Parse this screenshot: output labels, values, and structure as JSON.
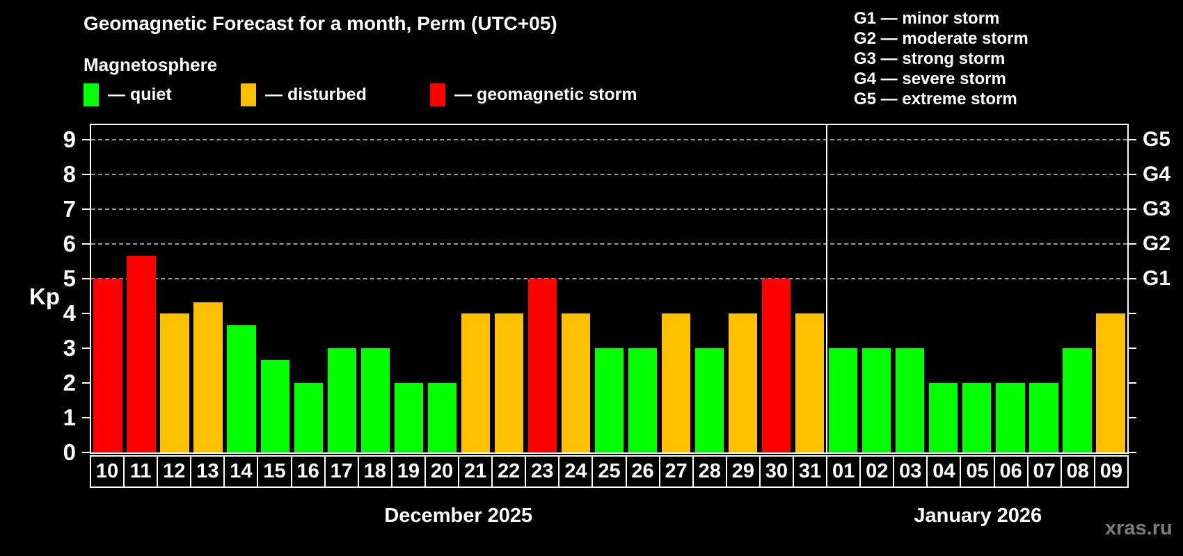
{
  "title": "Geomagnetic Forecast for a month, Perm (UTC+05)",
  "subtitle": "Magnetosphere",
  "legend": {
    "quiet": {
      "label": "— quiet",
      "color": "#00ff00"
    },
    "disturbed": {
      "label": "— disturbed",
      "color": "#ffc000"
    },
    "storm": {
      "label": "— geomagnetic storm",
      "color": "#ff0000"
    }
  },
  "g_legend": {
    "g1": "G1 — minor storm",
    "g2": "G2 — moderate storm",
    "g3": "G3 — strong storm",
    "g4": "G4 — severe storm",
    "g5": "G5 — extreme storm"
  },
  "watermark": "xras.ru",
  "chart_data": {
    "type": "bar",
    "title": "Geomagnetic Forecast for a month, Perm (UTC+05)",
    "ylabel": "Kp",
    "ylim": [
      0,
      9.42
    ],
    "yticks": [
      0,
      1,
      2,
      3,
      4,
      5,
      6,
      7,
      8,
      9
    ],
    "gridlines": [
      5,
      6,
      7,
      8,
      9
    ],
    "right_axis_labels": [
      {
        "level": 5,
        "label": "G1"
      },
      {
        "level": 6,
        "label": "G2"
      },
      {
        "level": 7,
        "label": "G3"
      },
      {
        "level": 8,
        "label": "G4"
      },
      {
        "level": 9,
        "label": "G5"
      }
    ],
    "legend_position": "top-left",
    "grid": "dashed horizontal at storm levels",
    "months": [
      {
        "label": "December 2025",
        "days": 22
      },
      {
        "label": "January 2026",
        "days": 9
      }
    ],
    "points": [
      {
        "day": "10",
        "value": 5.0,
        "state": "storm"
      },
      {
        "day": "11",
        "value": 5.67,
        "state": "storm"
      },
      {
        "day": "12",
        "value": 4.0,
        "state": "disturbed"
      },
      {
        "day": "13",
        "value": 4.33,
        "state": "disturbed"
      },
      {
        "day": "14",
        "value": 3.67,
        "state": "quiet"
      },
      {
        "day": "15",
        "value": 2.67,
        "state": "quiet"
      },
      {
        "day": "16",
        "value": 2.0,
        "state": "quiet"
      },
      {
        "day": "17",
        "value": 3.0,
        "state": "quiet"
      },
      {
        "day": "18",
        "value": 3.0,
        "state": "quiet"
      },
      {
        "day": "19",
        "value": 2.0,
        "state": "quiet"
      },
      {
        "day": "20",
        "value": 2.0,
        "state": "quiet"
      },
      {
        "day": "21",
        "value": 4.0,
        "state": "disturbed"
      },
      {
        "day": "22",
        "value": 4.0,
        "state": "disturbed"
      },
      {
        "day": "23",
        "value": 5.0,
        "state": "storm"
      },
      {
        "day": "24",
        "value": 4.0,
        "state": "disturbed"
      },
      {
        "day": "25",
        "value": 3.0,
        "state": "quiet"
      },
      {
        "day": "26",
        "value": 3.0,
        "state": "quiet"
      },
      {
        "day": "27",
        "value": 4.0,
        "state": "disturbed"
      },
      {
        "day": "28",
        "value": 3.0,
        "state": "quiet"
      },
      {
        "day": "29",
        "value": 4.0,
        "state": "disturbed"
      },
      {
        "day": "30",
        "value": 5.0,
        "state": "storm"
      },
      {
        "day": "31",
        "value": 4.0,
        "state": "disturbed"
      },
      {
        "day": "01",
        "value": 3.0,
        "state": "quiet"
      },
      {
        "day": "02",
        "value": 3.0,
        "state": "quiet"
      },
      {
        "day": "03",
        "value": 3.0,
        "state": "quiet"
      },
      {
        "day": "04",
        "value": 2.0,
        "state": "quiet"
      },
      {
        "day": "05",
        "value": 2.0,
        "state": "quiet"
      },
      {
        "day": "06",
        "value": 2.0,
        "state": "quiet"
      },
      {
        "day": "07",
        "value": 2.0,
        "state": "quiet"
      },
      {
        "day": "08",
        "value": 3.0,
        "state": "quiet"
      },
      {
        "day": "09",
        "value": 4.0,
        "state": "disturbed"
      }
    ]
  }
}
